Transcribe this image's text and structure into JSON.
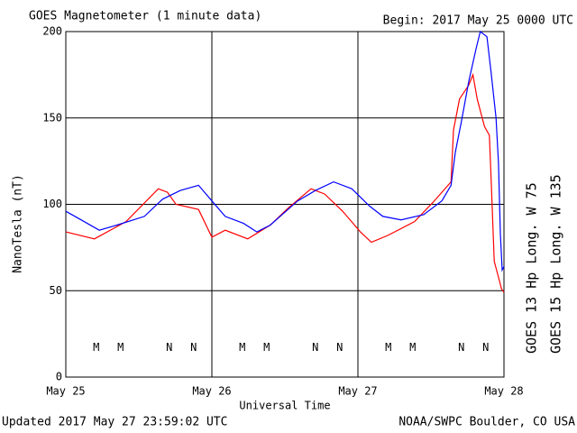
{
  "chart_data": {
    "type": "line",
    "title": "GOES Magnetometer (1 minute data)",
    "subtitle": "Begin:  2017 May 25 0000 UTC",
    "y_label": "NanoTesla (nT)",
    "x_label": "Universal Time",
    "footer_left": "Updated 2017 May 27 23:59:02 UTC",
    "footer_right": "NOAA/SWPC Boulder, CO USA",
    "xlim": [
      0,
      72
    ],
    "xticks": [
      {
        "value": 0,
        "label": "May 25"
      },
      {
        "value": 24,
        "label": "May 26"
      },
      {
        "value": 48,
        "label": "May 27"
      },
      {
        "value": 72,
        "label": "May 28"
      }
    ],
    "ylim": [
      0,
      200
    ],
    "yticks": [
      0,
      50,
      100,
      150,
      200
    ],
    "grid": true,
    "series": [
      {
        "name": "GOES 13 Hp  Long. W 75",
        "color": "#ff0000",
        "x": [
          0,
          4.7,
          9.9,
          15.2,
          16.7,
          18.1,
          21.8,
          24,
          26.2,
          29.9,
          33.6,
          36.6,
          40.3,
          42.5,
          45.5,
          48.4,
          50.2,
          52.9,
          57.3,
          60.3,
          63.3,
          63.7,
          64.7,
          66.2,
          66.9,
          67.6,
          68.8,
          69.6,
          69.9,
          70.4,
          71,
          71.6,
          72
        ],
        "values": [
          84,
          80,
          90,
          109,
          107,
          100,
          97,
          81,
          85,
          80,
          88,
          98,
          109,
          106,
          96,
          84,
          78,
          82,
          90,
          101,
          113,
          143,
          161,
          169,
          175,
          161,
          145,
          140,
          114,
          67,
          59,
          51,
          49
        ]
      },
      {
        "name": "GOES 15 Hp  Long. W 135",
        "color": "#0000ff",
        "x": [
          0,
          2.5,
          5.5,
          8.4,
          12.9,
          15.9,
          18.8,
          21.8,
          24,
          26.2,
          29.2,
          31.4,
          33.6,
          38.1,
          41,
          44,
          47,
          49.9,
          52.1,
          55.1,
          58.8,
          61.8,
          63.3,
          64,
          65,
          66.2,
          67.4,
          68.1,
          69.2,
          69.9,
          70.7,
          71.1,
          71.4,
          71.7,
          72
        ],
        "values": [
          96,
          91,
          85,
          88,
          93,
          103,
          108,
          111,
          102,
          93,
          89,
          84,
          88,
          102,
          108,
          113,
          109,
          99,
          93,
          91,
          94,
          102,
          111,
          130,
          148,
          171,
          190,
          200,
          197,
          176,
          150,
          124,
          83,
          62,
          64
        ]
      }
    ],
    "annotations": [
      {
        "text": "M",
        "x": 5,
        "y": 17,
        "color": "#ff0000"
      },
      {
        "text": "M",
        "x": 9,
        "y": 17,
        "color": "#0000ff"
      },
      {
        "text": "N",
        "x": 17,
        "y": 17,
        "color": "#ff0000"
      },
      {
        "text": "N",
        "x": 21,
        "y": 17,
        "color": "#0000ff"
      },
      {
        "text": "M",
        "x": 29,
        "y": 17,
        "color": "#ff0000"
      },
      {
        "text": "M",
        "x": 33,
        "y": 17,
        "color": "#0000ff"
      },
      {
        "text": "N",
        "x": 41,
        "y": 17,
        "color": "#ff0000"
      },
      {
        "text": "N",
        "x": 45,
        "y": 17,
        "color": "#0000ff"
      },
      {
        "text": "M",
        "x": 53,
        "y": 17,
        "color": "#ff0000"
      },
      {
        "text": "M",
        "x": 57,
        "y": 17,
        "color": "#0000ff"
      },
      {
        "text": "N",
        "x": 65,
        "y": 17,
        "color": "#ff0000"
      },
      {
        "text": "N",
        "x": 69,
        "y": 17,
        "color": "#0000ff"
      }
    ]
  }
}
